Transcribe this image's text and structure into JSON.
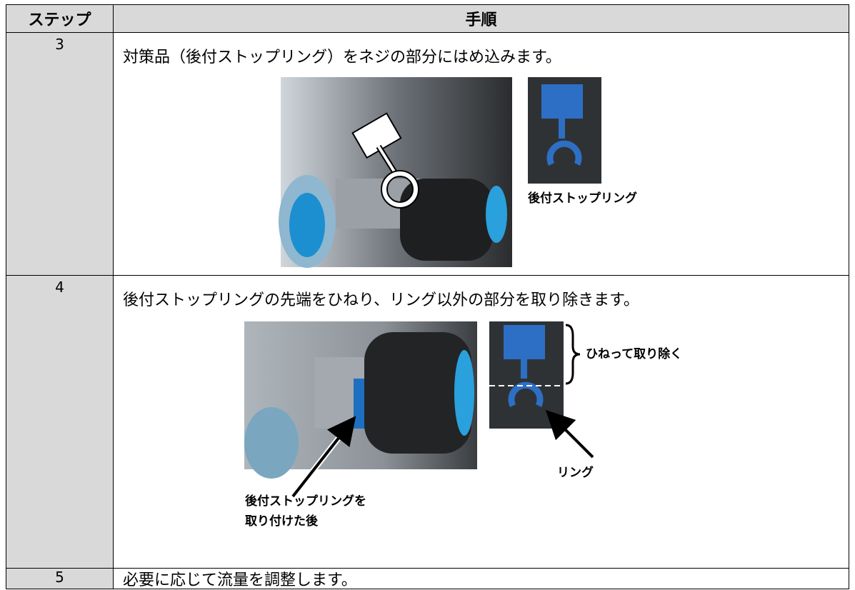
{
  "table": {
    "headers": [
      "ステップ",
      "手順"
    ],
    "rows": [
      {
        "step": "3",
        "text": "対策品（後付ストップリング）をネジの部分にはめ込みます。",
        "captions": [
          "後付ストップリング"
        ]
      },
      {
        "step": "4",
        "text": "後付ストップリングの先端をひねり、リング以外の部分を取り除きます。",
        "captions": [
          "ひねって取り除く",
          "リング",
          "後付ストップリングを",
          "取り付けた後"
        ]
      },
      {
        "step": "5",
        "text": "必要に応じて流量を調整します。"
      }
    ]
  }
}
